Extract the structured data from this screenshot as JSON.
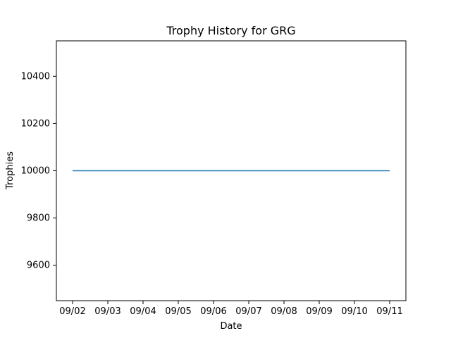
{
  "chart_data": {
    "type": "line",
    "title": "Trophy History for GRG",
    "xlabel": "Date",
    "ylabel": "Trophies",
    "x": [
      "09/02",
      "09/03",
      "09/04",
      "09/05",
      "09/06",
      "09/07",
      "09/08",
      "09/09",
      "09/10",
      "09/11"
    ],
    "series": [
      {
        "values": [
          10000,
          10000,
          10000,
          10000,
          10000,
          10000,
          10000,
          10000,
          10000,
          10000
        ],
        "color": "#1f77b4"
      }
    ],
    "ylim": [
      9450,
      10550
    ],
    "yticks": [
      9600,
      9800,
      10000,
      10200,
      10400
    ],
    "grid": false,
    "legend": "none"
  }
}
